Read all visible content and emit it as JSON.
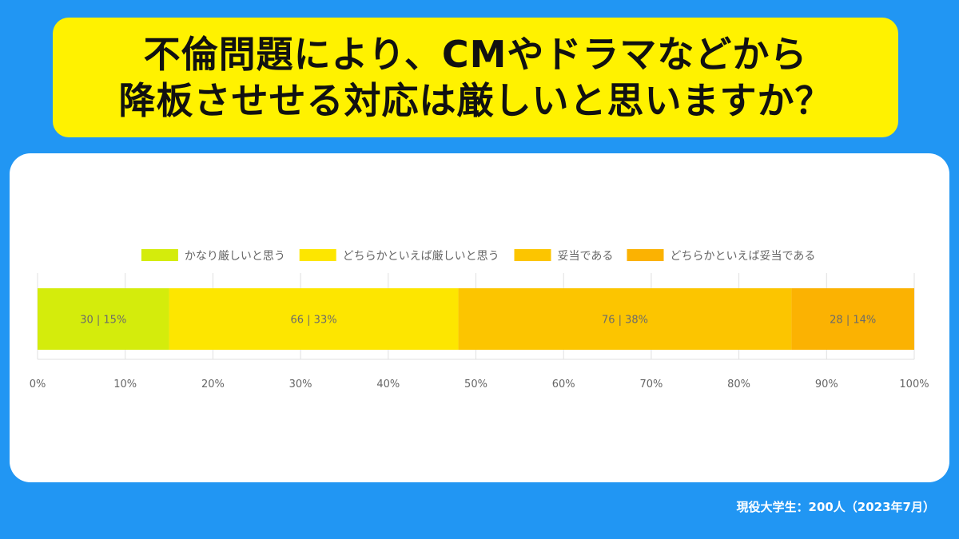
{
  "title": {
    "line1": "不倫問題により、CMやドラマなどから",
    "line2": "降板させせる対応は厳しいと思いますか？"
  },
  "footer": "現役大学生：200人（2023年7月）",
  "chart_data": {
    "type": "bar",
    "orientation": "horizontal-stacked-100",
    "series": [
      {
        "name": "かなり厳しいと思う",
        "value": 30,
        "percent": 15,
        "label": "30 | 15%",
        "color": "#d4ec0c"
      },
      {
        "name": "どちらかといえば厳しいと思う",
        "value": 66,
        "percent": 33,
        "label": "66 | 33%",
        "color": "#fde600"
      },
      {
        "name": "妥当である",
        "value": 76,
        "percent": 38,
        "label": "76 | 38%",
        "color": "#fcc500"
      },
      {
        "name": "どちらかといえば妥当である",
        "value": 28,
        "percent": 14,
        "label": "28 | 14%",
        "color": "#fbb202"
      }
    ],
    "xlim": [
      0,
      100
    ],
    "ticks": [
      "0%",
      "10%",
      "20%",
      "30%",
      "40%",
      "50%",
      "60%",
      "70%",
      "80%",
      "90%",
      "100%"
    ],
    "grid": true,
    "legend": "top-center"
  }
}
